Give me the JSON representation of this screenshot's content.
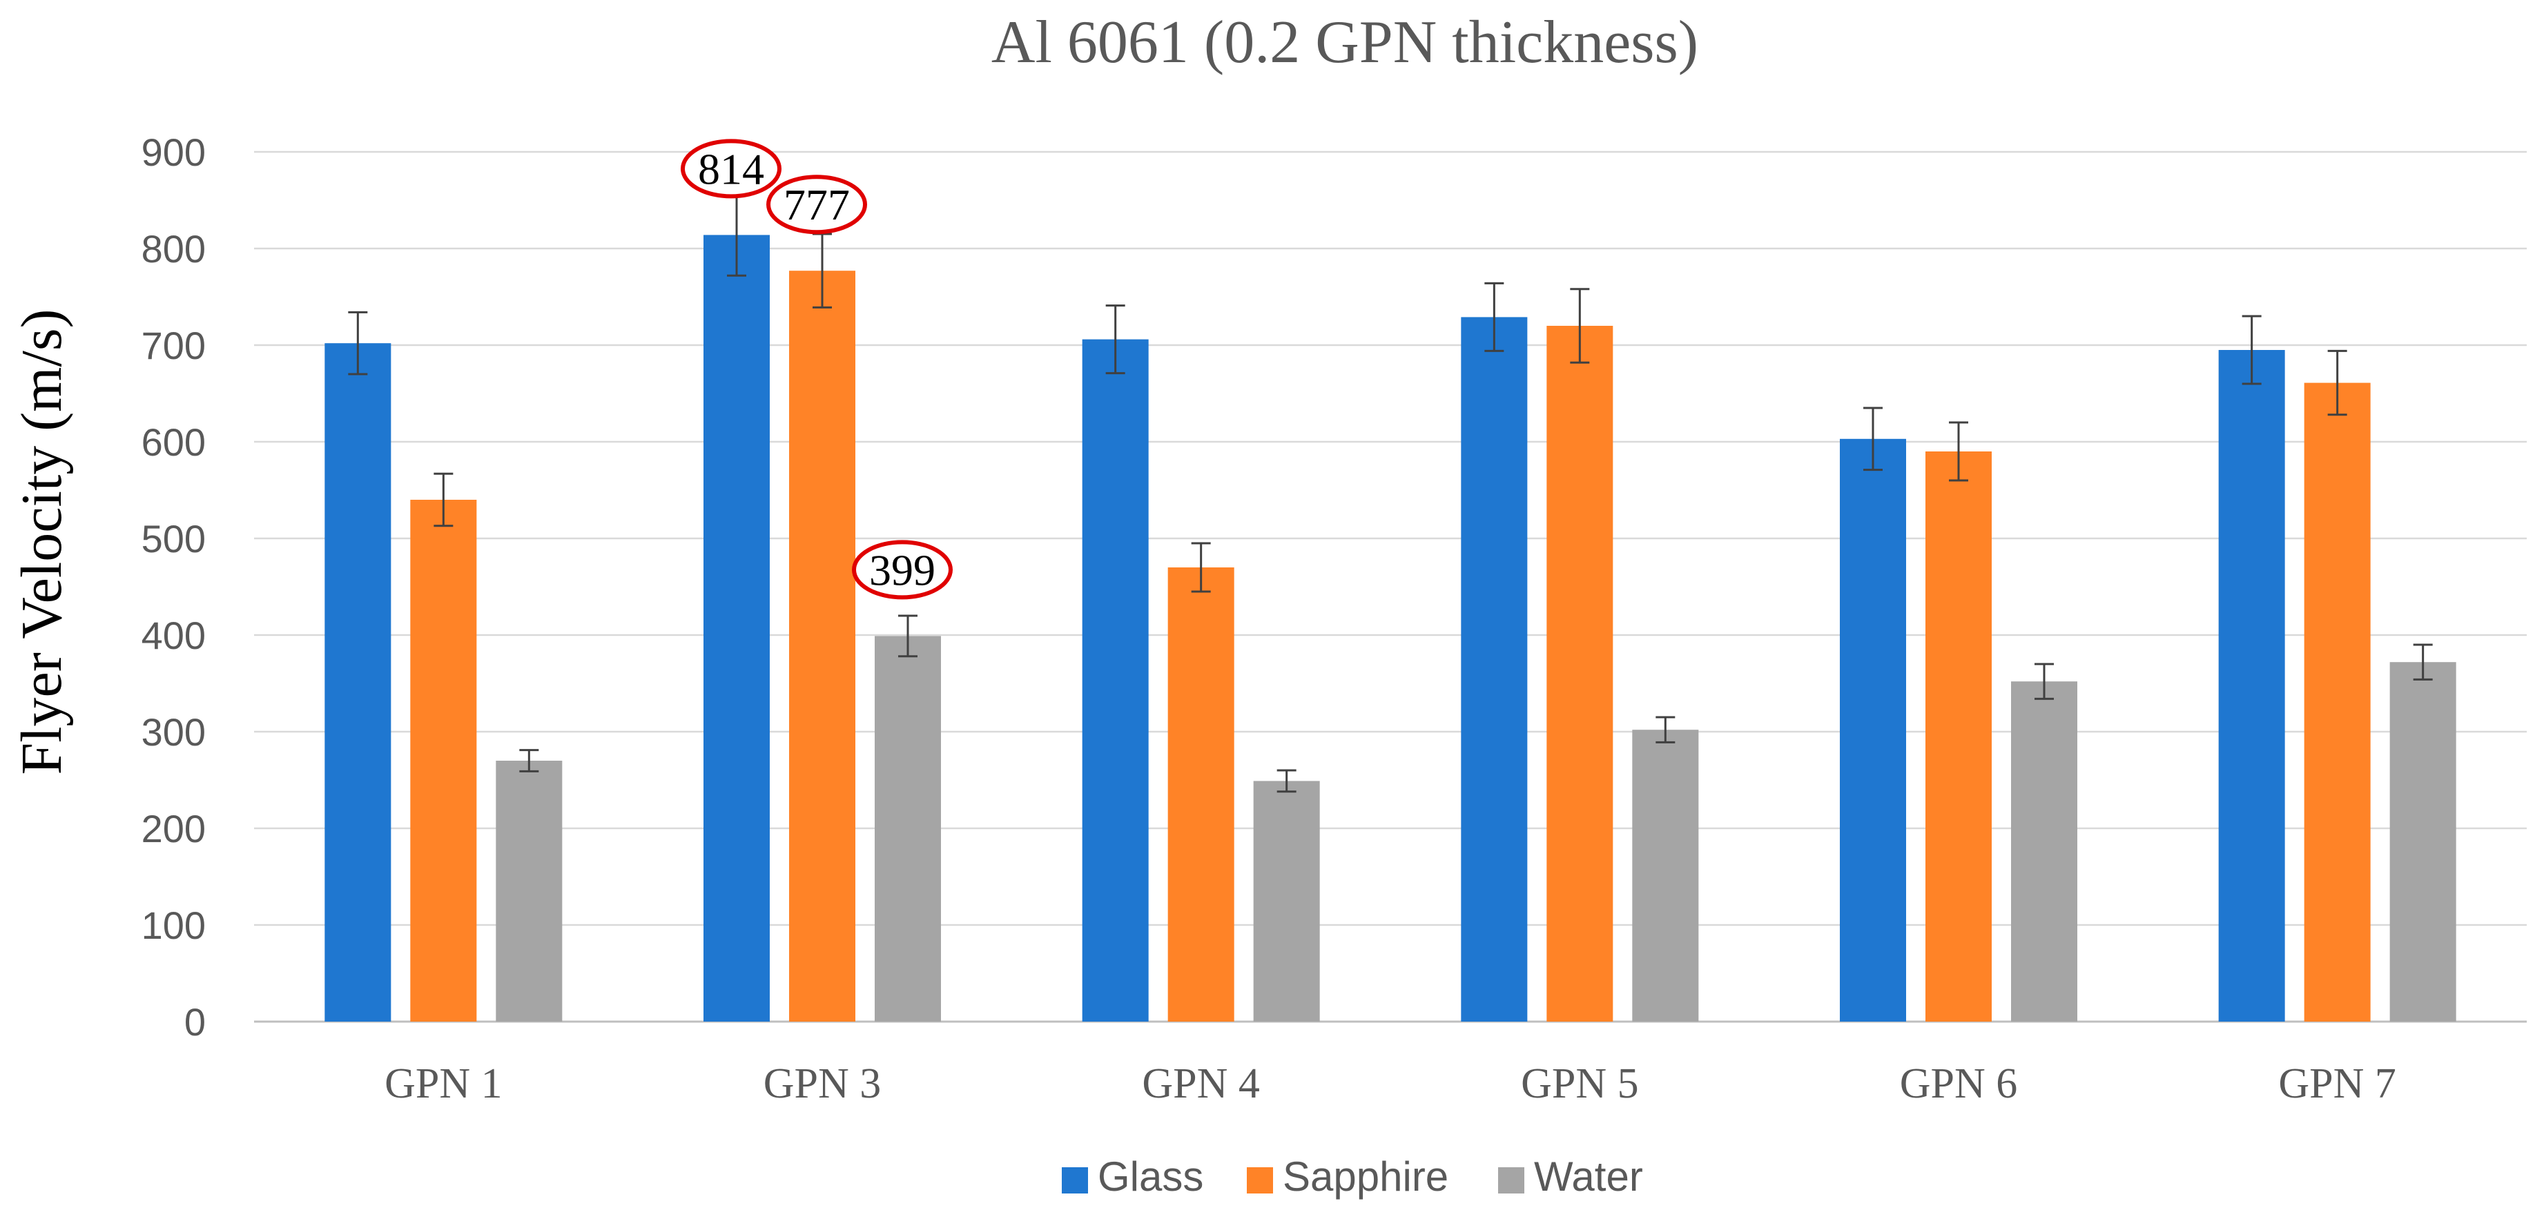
{
  "chart_data": {
    "type": "bar",
    "title": "Al 6061 (0.2 GPN thickness)",
    "xlabel": "",
    "ylabel": "Flyer Velocity (m/s)",
    "categories": [
      "GPN 1",
      "GPN 3",
      "GPN 4",
      "GPN 5",
      "GPN 6",
      "GPN 7"
    ],
    "ylim": [
      0,
      900
    ],
    "yticks": [
      0,
      100,
      200,
      300,
      400,
      500,
      600,
      700,
      800,
      900
    ],
    "grid": true,
    "legend_position": "bottom",
    "series": [
      {
        "name": "Glass",
        "color": "#1F77D0",
        "values": [
          702,
          814,
          706,
          729,
          603,
          695
        ],
        "errors": [
          32,
          42,
          35,
          35,
          32,
          35
        ]
      },
      {
        "name": "Sapphire",
        "color": "#FF8327",
        "values": [
          540,
          777,
          470,
          720,
          590,
          661
        ],
        "errors": [
          27,
          38,
          25,
          38,
          30,
          33
        ]
      },
      {
        "name": "Water",
        "color": "#A5A5A5",
        "values": [
          270,
          399,
          249,
          302,
          352,
          372
        ],
        "errors": [
          11,
          21,
          11,
          13,
          18,
          18
        ]
      }
    ],
    "annotations": [
      {
        "text": "814",
        "series": "Glass",
        "category": "GPN 3",
        "value": 814
      },
      {
        "text": "777",
        "series": "Sapphire",
        "category": "GPN 3",
        "value": 777
      },
      {
        "text": "399",
        "series": "Water",
        "category": "GPN 3",
        "value": 399
      }
    ],
    "annotation_color": "#E00000"
  }
}
